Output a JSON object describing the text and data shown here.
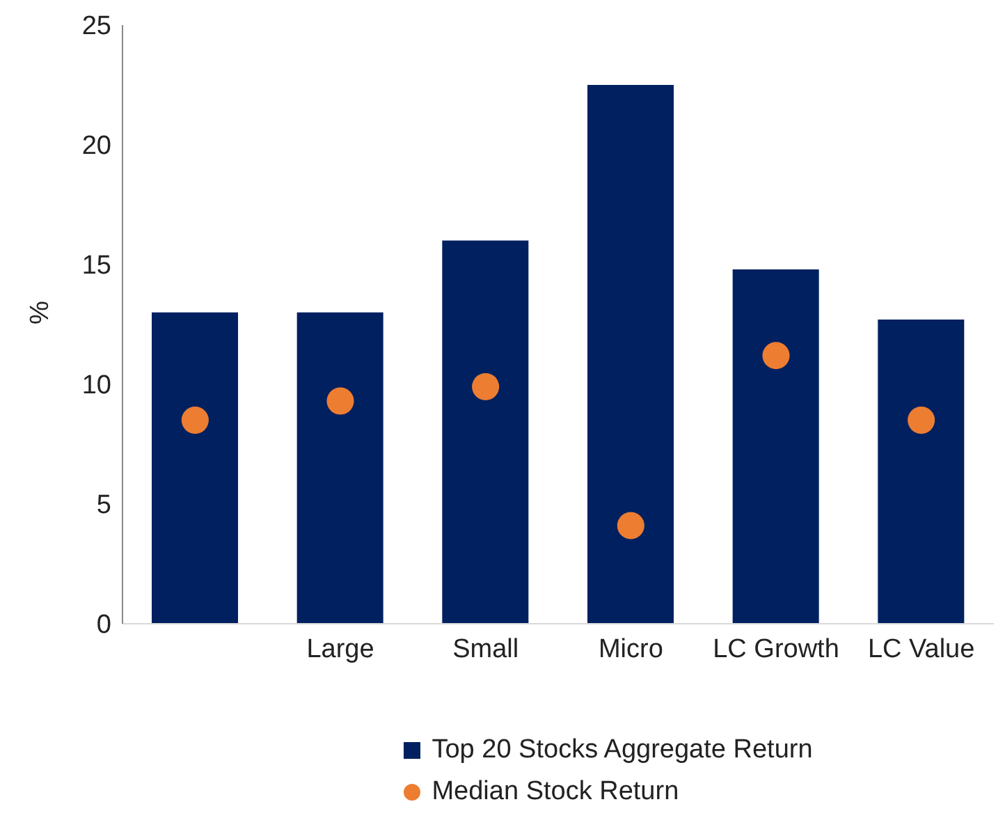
{
  "chart_data": {
    "type": "bar",
    "ylabel": "%",
    "categories": [
      null,
      "Large",
      "Small",
      "Micro",
      "LC Growth",
      "LC Value"
    ],
    "series": [
      {
        "name": "Top 20 Stocks Aggregate Return",
        "color": "#002060",
        "values": [
          13.0,
          13.0,
          16.0,
          22.5,
          14.8,
          12.7
        ]
      },
      {
        "name": "Median Stock Return",
        "type": "scatter",
        "color": "#ed7d31",
        "values": [
          8.5,
          9.3,
          9.9,
          4.1,
          11.2,
          8.5
        ]
      }
    ],
    "ylim": [
      0,
      25
    ],
    "yticks": [
      0,
      5,
      10,
      15,
      20,
      25
    ],
    "grid": false,
    "legend": "bottom",
    "marker": "circle"
  }
}
